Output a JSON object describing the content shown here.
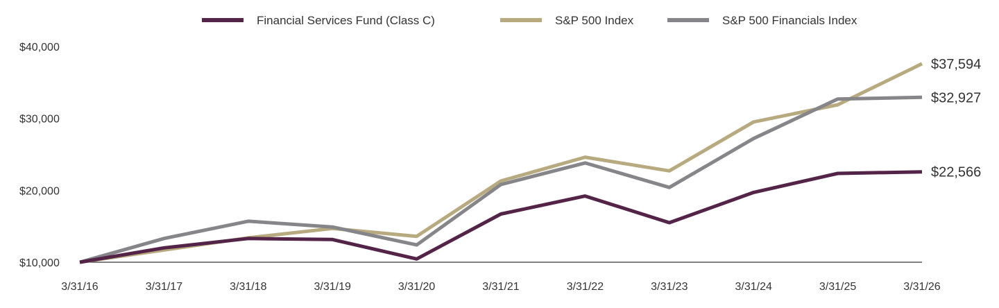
{
  "chart_data": {
    "type": "line",
    "categories": [
      "3/31/16",
      "3/31/17",
      "3/31/18",
      "3/31/19",
      "3/31/20",
      "3/31/21",
      "3/31/22",
      "3/31/23",
      "3/31/24",
      "3/31/25",
      "3/31/26"
    ],
    "y_ticks": [
      "$10,000",
      "$20,000",
      "$30,000",
      "$40,000"
    ],
    "y_tick_values": [
      10000,
      20000,
      30000,
      40000
    ],
    "ylim": [
      10000,
      40000
    ],
    "grid": false,
    "legend_position": "top-center",
    "series": [
      {
        "name": "Financial Services Fund (Class C)",
        "color": "#532448",
        "values": [
          10000,
          12000,
          13300,
          13150,
          10450,
          16700,
          19200,
          15500,
          19700,
          22350,
          22566
        ],
        "end_label": "$22,566"
      },
      {
        "name": "S&P 500 Index",
        "color": "#b8aa7f",
        "values": [
          10000,
          11700,
          13400,
          14700,
          13600,
          21300,
          24600,
          22700,
          29500,
          31900,
          37594
        ],
        "end_label": "$37,594"
      },
      {
        "name": "S&P 500 Financials Index",
        "color": "#85858a",
        "values": [
          10000,
          13300,
          15700,
          14900,
          12400,
          20800,
          23800,
          20400,
          27200,
          32700,
          32927
        ],
        "end_label": "$32,927"
      }
    ]
  }
}
